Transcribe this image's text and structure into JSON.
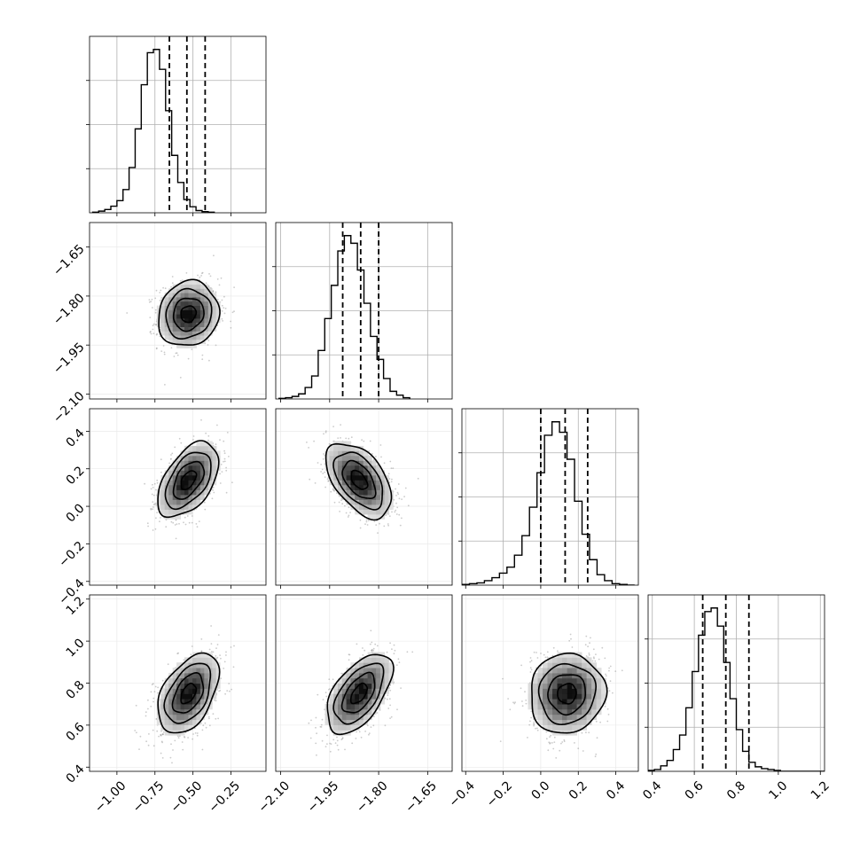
{
  "chart_data": {
    "type": "corner",
    "title": "",
    "parameters": [
      {
        "name": "",
        "range": [
          -1.18,
          -0.02
        ],
        "ticks": [
          -1.0,
          -0.75,
          -0.5,
          -0.25
        ],
        "tick_labels": [
          "−1.00",
          "−0.75",
          "−0.50",
          "−0.25"
        ],
        "quantiles": [
          -0.655,
          -0.54,
          -0.42
        ],
        "hist": {
          "bin_start": -1.16,
          "bin_width": 0.04,
          "counts": [
            1,
            3,
            6,
            12,
            22,
            42,
            82,
            152,
            232,
            290,
            296,
            260,
            185,
            104,
            55,
            24,
            11,
            4,
            2,
            1
          ]
        }
      },
      {
        "name": "",
        "range": [
          -2.115,
          -1.575
        ],
        "ticks": [
          -2.1,
          -1.95,
          -1.8,
          -1.65
        ],
        "tick_labels": [
          "−2.10",
          "−1.95",
          "−1.80",
          "−1.65"
        ],
        "quantiles": [
          -1.91,
          -1.855,
          -1.8
        ],
        "hist": {
          "bin_start": -2.105,
          "bin_width": 0.02,
          "counts": [
            1,
            2,
            4,
            8,
            18,
            36,
            76,
            126,
            178,
            232,
            256,
            244,
            202,
            150,
            98,
            62,
            32,
            12,
            6,
            2
          ]
        }
      },
      {
        "name": "",
        "range": [
          -0.42,
          0.52
        ],
        "ticks": [
          -0.4,
          -0.2,
          0.0,
          0.2,
          0.4
        ],
        "tick_labels": [
          "−0.4",
          "−0.2",
          "0.0",
          "0.2",
          "0.4"
        ],
        "quantiles": [
          0.0,
          0.13,
          0.25
        ],
        "hist": {
          "bin_start": -0.42,
          "bin_width": 0.04,
          "counts": [
            1,
            2,
            3,
            6,
            10,
            16,
            24,
            40,
            66,
            104,
            150,
            200,
            218,
            204,
            168,
            112,
            68,
            34,
            14,
            6,
            2,
            1,
            0
          ]
        }
      },
      {
        "name": "",
        "range": [
          0.38,
          1.22
        ],
        "ticks": [
          0.4,
          0.6,
          0.8,
          1.0,
          1.2
        ],
        "tick_labels": [
          "0.4",
          "0.6",
          "0.8",
          "1.0",
          "1.2"
        ],
        "quantiles": [
          0.64,
          0.75,
          0.86
        ],
        "hist": {
          "bin_start": 0.38,
          "bin_width": 0.03,
          "counts": [
            1,
            2,
            6,
            12,
            24,
            40,
            70,
            110,
            150,
            176,
            180,
            160,
            120,
            80,
            46,
            22,
            10,
            5,
            3,
            2,
            1,
            0,
            0,
            0,
            0,
            0,
            0,
            0
          ]
        }
      }
    ],
    "pairs": [
      {
        "x": 0,
        "y": 1,
        "corr": 0.1,
        "center": [
          -0.53,
          -1.855
        ],
        "sd": [
          0.1,
          0.05
        ]
      },
      {
        "x": 0,
        "y": 2,
        "corr": 0.5,
        "center": [
          -0.53,
          0.14
        ],
        "sd": [
          0.1,
          0.1
        ]
      },
      {
        "x": 1,
        "y": 2,
        "corr": -0.5,
        "center": [
          -1.86,
          0.14
        ],
        "sd": [
          0.05,
          0.1
        ]
      },
      {
        "x": 0,
        "y": 3,
        "corr": 0.45,
        "center": [
          -0.53,
          0.75
        ],
        "sd": [
          0.1,
          0.095
        ]
      },
      {
        "x": 1,
        "y": 3,
        "corr": 0.55,
        "center": [
          -1.86,
          0.75
        ],
        "sd": [
          0.05,
          0.095
        ]
      },
      {
        "x": 2,
        "y": 3,
        "corr": 0.05,
        "center": [
          0.14,
          0.75
        ],
        "sd": [
          0.1,
          0.095
        ]
      }
    ],
    "contour_levels_sigma": [
      0.5,
      1.0,
      1.5,
      2.0
    ],
    "grid": true,
    "colors": {
      "line": "#000000",
      "grid": "#b0b0b0",
      "points": "#8c8c8c",
      "density_max": "#000000"
    }
  }
}
